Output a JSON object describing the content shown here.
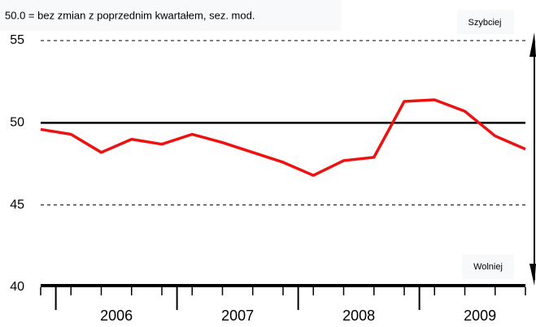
{
  "chart_data": {
    "type": "line",
    "subtitle": "50.0 = bez zmian z poprzednim kwartałem, sez. mod.",
    "top_label": "Szybciej",
    "bottom_label": "Wolniej",
    "categories": [
      null,
      null,
      null,
      null,
      null,
      null,
      null,
      null,
      null,
      null,
      null,
      null,
      null,
      null,
      null,
      null,
      null
    ],
    "years": [
      "2006",
      "2007",
      "2008",
      "2009"
    ],
    "series": [
      {
        "color": "#ee1111",
        "values": [
          49.6,
          49.3,
          48.2,
          49.0,
          48.7,
          49.3,
          48.8,
          48.2,
          47.6,
          46.8,
          47.7,
          47.9,
          51.3,
          51.4,
          50.7,
          49.2,
          48.4
        ]
      }
    ],
    "ylim": [
      40,
      55
    ],
    "yticks": [
      40,
      45,
      50,
      55
    ],
    "reference_line": 50,
    "grid": true
  }
}
